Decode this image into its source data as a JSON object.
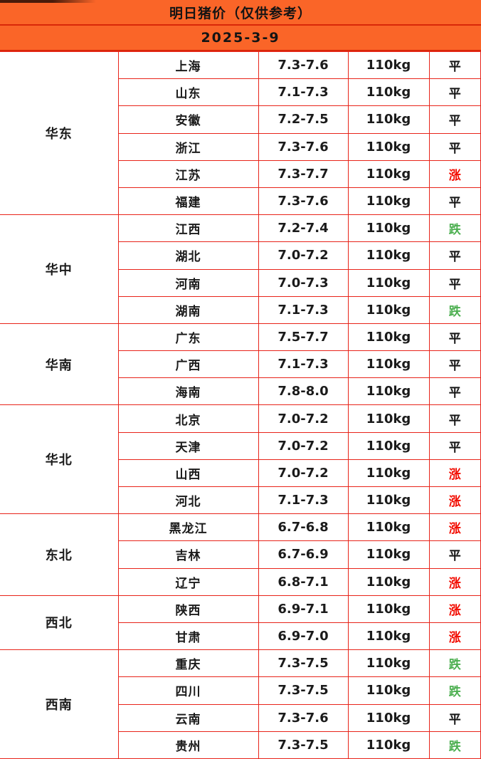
{
  "meta": {
    "title": "明日猪价（仅供参考）",
    "date": "2025-3-9"
  },
  "colors": {
    "header_bg": "#fa6528",
    "header_divider": "#d92708",
    "table_border": "#e8241a",
    "trend_up": "#f20c00",
    "trend_down": "#4caf50",
    "trend_flat": "#141414",
    "text": "#1b1b1b"
  },
  "table": {
    "regions": [
      {
        "name": "华东",
        "rows": [
          {
            "province": "上海",
            "price": "7.3-7.6",
            "weight": "110kg",
            "trend": "平",
            "trend_type": "flat"
          },
          {
            "province": "山东",
            "price": "7.1-7.3",
            "weight": "110kg",
            "trend": "平",
            "trend_type": "flat"
          },
          {
            "province": "安徽",
            "price": "7.2-7.5",
            "weight": "110kg",
            "trend": "平",
            "trend_type": "flat"
          },
          {
            "province": "浙江",
            "price": "7.3-7.6",
            "weight": "110kg",
            "trend": "平",
            "trend_type": "flat"
          },
          {
            "province": "江苏",
            "price": "7.3-7.7",
            "weight": "110kg",
            "trend": "涨",
            "trend_type": "up"
          },
          {
            "province": "福建",
            "price": "7.3-7.6",
            "weight": "110kg",
            "trend": "平",
            "trend_type": "flat"
          }
        ]
      },
      {
        "name": "华中",
        "rows": [
          {
            "province": "江西",
            "price": "7.2-7.4",
            "weight": "110kg",
            "trend": "跌",
            "trend_type": "down"
          },
          {
            "province": "湖北",
            "price": "7.0-7.2",
            "weight": "110kg",
            "trend": "平",
            "trend_type": "flat"
          },
          {
            "province": "河南",
            "price": "7.0-7.3",
            "weight": "110kg",
            "trend": "平",
            "trend_type": "flat"
          },
          {
            "province": "湖南",
            "price": "7.1-7.3",
            "weight": "110kg",
            "trend": "跌",
            "trend_type": "down"
          }
        ]
      },
      {
        "name": "华南",
        "rows": [
          {
            "province": "广东",
            "price": "7.5-7.7",
            "weight": "110kg",
            "trend": "平",
            "trend_type": "flat"
          },
          {
            "province": "广西",
            "price": "7.1-7.3",
            "weight": "110kg",
            "trend": "平",
            "trend_type": "flat"
          },
          {
            "province": "海南",
            "price": "7.8-8.0",
            "weight": "110kg",
            "trend": "平",
            "trend_type": "flat"
          }
        ]
      },
      {
        "name": "华北",
        "rows": [
          {
            "province": "北京",
            "price": "7.0-7.2",
            "weight": "110kg",
            "trend": "平",
            "trend_type": "flat"
          },
          {
            "province": "天津",
            "price": "7.0-7.2",
            "weight": "110kg",
            "trend": "平",
            "trend_type": "flat"
          },
          {
            "province": "山西",
            "price": "7.0-7.2",
            "weight": "110kg",
            "trend": "涨",
            "trend_type": "up"
          },
          {
            "province": "河北",
            "price": "7.1-7.3",
            "weight": "110kg",
            "trend": "涨",
            "trend_type": "up"
          }
        ]
      },
      {
        "name": "东北",
        "rows": [
          {
            "province": "黑龙江",
            "price": "6.7-6.8",
            "weight": "110kg",
            "trend": "涨",
            "trend_type": "up"
          },
          {
            "province": "吉林",
            "price": "6.7-6.9",
            "weight": "110kg",
            "trend": "平",
            "trend_type": "flat"
          },
          {
            "province": "辽宁",
            "price": "6.8-7.1",
            "weight": "110kg",
            "trend": "涨",
            "trend_type": "up"
          }
        ]
      },
      {
        "name": "西北",
        "rows": [
          {
            "province": "陕西",
            "price": "6.9-7.1",
            "weight": "110kg",
            "trend": "涨",
            "trend_type": "up"
          },
          {
            "province": "甘肃",
            "price": "6.9-7.0",
            "weight": "110kg",
            "trend": "涨",
            "trend_type": "up"
          }
        ]
      },
      {
        "name": "西南",
        "rows": [
          {
            "province": "重庆",
            "price": "7.3-7.5",
            "weight": "110kg",
            "trend": "跌",
            "trend_type": "down"
          },
          {
            "province": "四川",
            "price": "7.3-7.5",
            "weight": "110kg",
            "trend": "跌",
            "trend_type": "down"
          },
          {
            "province": "云南",
            "price": "7.3-7.6",
            "weight": "110kg",
            "trend": "平",
            "trend_type": "flat"
          },
          {
            "province": "贵州",
            "price": "7.3-7.5",
            "weight": "110kg",
            "trend": "跌",
            "trend_type": "down"
          }
        ]
      }
    ]
  }
}
